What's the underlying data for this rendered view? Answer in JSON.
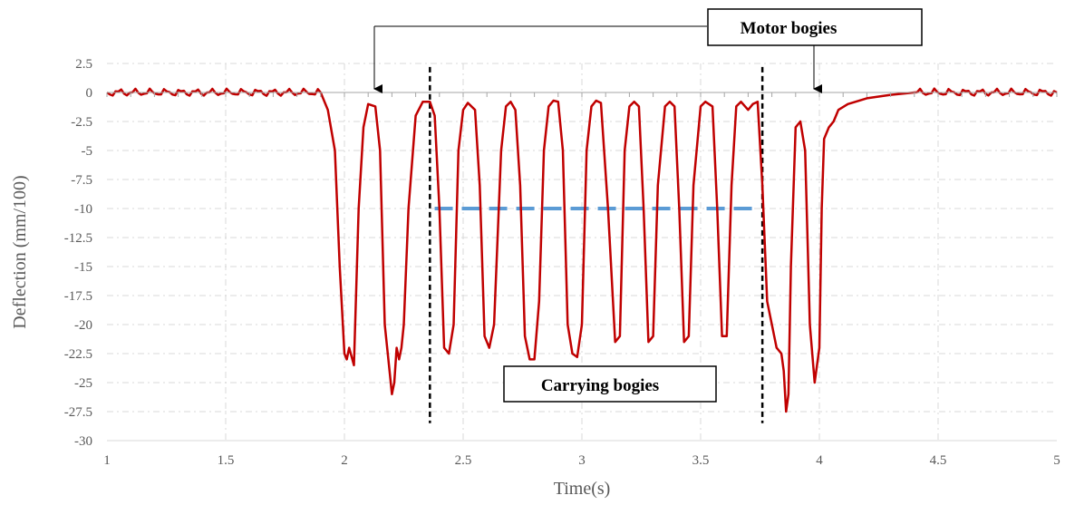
{
  "chart_data": {
    "type": "line",
    "title": "",
    "xlabel": "Time(s)",
    "ylabel": "Deflection (mm/100)",
    "xlim": [
      1,
      5
    ],
    "ylim": [
      -30,
      2.5
    ],
    "x_ticks": [
      1,
      1.5,
      2,
      2.5,
      3,
      3.5,
      4,
      4.5,
      5
    ],
    "x_tick_labels": [
      "1",
      "1.5",
      "2",
      "2.5",
      "3",
      "3.5",
      "4",
      "4.5",
      "5"
    ],
    "y_ticks": [
      2.5,
      0,
      -2.5,
      -5,
      -7.5,
      -10,
      -12.5,
      -15,
      -17.5,
      -20,
      -22.5,
      -25,
      -27.5,
      -30
    ],
    "y_tick_labels": [
      "2.5",
      "0",
      "-2.5",
      "-5",
      "-7.5",
      "-10",
      "-12.5",
      "-15",
      "-17.5",
      "-20",
      "-22.5",
      "-25",
      "-27.5",
      "-30"
    ],
    "grid": true,
    "colors": {
      "series": "#c00000",
      "reference": "#5b9bd5",
      "separator": "#000000",
      "grid": "#d9d9d9"
    },
    "series": [
      {
        "x": [
          1.0,
          1.9,
          1.93,
          1.96,
          1.98,
          2.0,
          2.01,
          2.02,
          2.04,
          2.06,
          2.08,
          2.1,
          2.13,
          2.15,
          2.17,
          2.19,
          2.2,
          2.21,
          2.22,
          2.23,
          2.24,
          2.25,
          2.27,
          2.3,
          2.33,
          2.36,
          2.38,
          2.4,
          2.42,
          2.44,
          2.46,
          2.48,
          2.5,
          2.52,
          2.55,
          2.57,
          2.59,
          2.61,
          2.63,
          2.66,
          2.68,
          2.7,
          2.72,
          2.74,
          2.76,
          2.78,
          2.8,
          2.82,
          2.84,
          2.86,
          2.88,
          2.9,
          2.92,
          2.94,
          2.96,
          2.98,
          3.0,
          3.02,
          3.04,
          3.06,
          3.08,
          3.11,
          3.14,
          3.16,
          3.18,
          3.2,
          3.22,
          3.24,
          3.26,
          3.28,
          3.3,
          3.32,
          3.35,
          3.37,
          3.39,
          3.41,
          3.43,
          3.45,
          3.47,
          3.5,
          3.52,
          3.55,
          3.57,
          3.59,
          3.61,
          3.63,
          3.65,
          3.67,
          3.7,
          3.72,
          3.74,
          3.76,
          3.78,
          3.8,
          3.82,
          3.84,
          3.85,
          3.86,
          3.87,
          3.88,
          3.9,
          3.92,
          3.94,
          3.96,
          3.98,
          4.0,
          4.01,
          4.02,
          4.04,
          4.06,
          4.08,
          4.12,
          4.2,
          4.3,
          4.4,
          5.0
        ],
        "y": [
          0,
          0,
          -1.5,
          -5,
          -15,
          -22.5,
          -23,
          -22,
          -23.5,
          -10,
          -3,
          -1,
          -1.2,
          -5,
          -20,
          -24,
          -26,
          -25,
          -22,
          -23,
          -22,
          -20,
          -10,
          -2,
          -0.8,
          -0.8,
          -2,
          -10,
          -22,
          -22.5,
          -20,
          -5,
          -1.5,
          -0.9,
          -1.5,
          -8,
          -21,
          -22,
          -20,
          -5,
          -1.2,
          -0.8,
          -1.5,
          -8,
          -21,
          -23,
          -23,
          -18,
          -5,
          -1.2,
          -0.7,
          -0.8,
          -5,
          -20,
          -22.5,
          -22.8,
          -20,
          -5,
          -1.2,
          -0.7,
          -0.9,
          -10,
          -21.5,
          -21,
          -5,
          -1.2,
          -0.8,
          -1.2,
          -10,
          -21.5,
          -21,
          -8,
          -1.2,
          -0.8,
          -1.2,
          -10,
          -21.5,
          -21,
          -8,
          -1.2,
          -0.8,
          -1.2,
          -10,
          -21,
          -21,
          -8,
          -1.2,
          -0.8,
          -1.5,
          -1,
          -0.8,
          -8,
          -18,
          -20,
          -22,
          -22.5,
          -24,
          -27.5,
          -26,
          -15,
          -3,
          -2.5,
          -5,
          -20,
          -25,
          -22,
          -10,
          -4,
          -3,
          -2.5,
          -1.5,
          -1,
          -0.5,
          -0.2,
          0,
          0
        ],
        "noise": true
      }
    ],
    "reference_lines": [
      {
        "type": "horizontal",
        "y": -10,
        "x_from": 2.38,
        "x_to": 3.75,
        "style": "dashed"
      },
      {
        "type": "vertical",
        "x": 2.36,
        "y_from": 2.2,
        "y_to": -28.5,
        "style": "dotted"
      },
      {
        "type": "vertical",
        "x": 3.76,
        "y_from": 2.2,
        "y_to": -28.5,
        "style": "dotted"
      }
    ],
    "annotations": [
      {
        "text": "Motor bogies",
        "arrow_targets": [
          {
            "x": 2.13,
            "y": -0.2
          },
          {
            "x": 3.97,
            "y": -0.2
          }
        ],
        "boxed": true
      },
      {
        "text": "Carrying bogies",
        "boxed": true
      }
    ]
  }
}
